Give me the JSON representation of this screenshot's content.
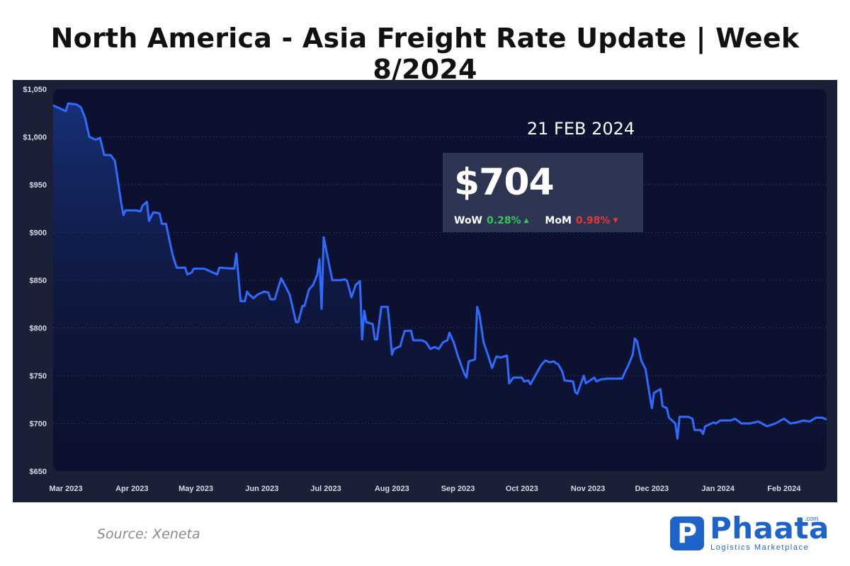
{
  "title": "North America - Asia Freight Rate Update | Week 8/2024",
  "callout": {
    "date": "21 FEB 2024",
    "value": "$704",
    "wow_label": "WoW",
    "wow_value": "0.28%",
    "mom_label": "MoM",
    "mom_value": "0.98%"
  },
  "source": "Source: Xeneta",
  "logo": {
    "name": "Phaata",
    "badge": "P",
    "com": ".com",
    "tagline": "Logistics Marketplace"
  },
  "colors": {
    "line": "#2f6bff",
    "panel": "#1b2036",
    "plot": "#0c1130",
    "up": "#34c759",
    "down": "#e53935",
    "brand": "#1e64c8"
  },
  "chart_data": {
    "type": "line",
    "title": "North America - Asia Freight Rate Update | Week 8/2024",
    "xlabel": "",
    "ylabel": "",
    "ylim": [
      650,
      1050
    ],
    "yticks": [
      650,
      700,
      750,
      800,
      850,
      900,
      950,
      1000,
      1050
    ],
    "ytick_labels": [
      "$650",
      "$700",
      "$750",
      "$800",
      "$850",
      "$900",
      "$950",
      "$1,000",
      "$1,050"
    ],
    "xlim": [
      "2023-02-23",
      "2024-02-21"
    ],
    "xtick_labels": [
      "Mar 2023",
      "Apr 2023",
      "May 2023",
      "Jun 2023",
      "Jul 2023",
      "Aug 2023",
      "Sep 2023",
      "Oct 2023",
      "Nov 2023",
      "Dec 2023",
      "Jan 2024",
      "Feb 2024"
    ],
    "xtick_dates": [
      "2023-03-01",
      "2023-04-01",
      "2023-05-01",
      "2023-06-01",
      "2023-07-01",
      "2023-08-01",
      "2023-09-01",
      "2023-10-01",
      "2023-11-01",
      "2023-12-01",
      "2024-01-01",
      "2024-02-01"
    ],
    "grid": true,
    "series": [
      {
        "values": [
          [
            "2023-02-23",
            1033
          ],
          [
            "2023-02-26",
            1030
          ],
          [
            "2023-03-01",
            1027
          ],
          [
            "2023-03-02",
            1035
          ],
          [
            "2023-03-06",
            1034
          ],
          [
            "2023-03-08",
            1031
          ],
          [
            "2023-03-10",
            1020
          ],
          [
            "2023-03-12",
            1000
          ],
          [
            "2023-03-15",
            997
          ],
          [
            "2023-03-17",
            999
          ],
          [
            "2023-03-19",
            981
          ],
          [
            "2023-03-22",
            981
          ],
          [
            "2023-03-24",
            975
          ],
          [
            "2023-03-27",
            930
          ],
          [
            "2023-03-28",
            918
          ],
          [
            "2023-03-29",
            923
          ],
          [
            "2023-04-03",
            923
          ],
          [
            "2023-04-05",
            922
          ],
          [
            "2023-04-06",
            928
          ],
          [
            "2023-04-08",
            932
          ],
          [
            "2023-04-09",
            912
          ],
          [
            "2023-04-11",
            921
          ],
          [
            "2023-04-14",
            920
          ],
          [
            "2023-04-15",
            909
          ],
          [
            "2023-04-17",
            909
          ],
          [
            "2023-04-20",
            877
          ],
          [
            "2023-04-22",
            863
          ],
          [
            "2023-04-26",
            863
          ],
          [
            "2023-04-27",
            856
          ],
          [
            "2023-04-29",
            858
          ],
          [
            "2023-04-30",
            862
          ],
          [
            "2023-05-05",
            862
          ],
          [
            "2023-05-07",
            860
          ],
          [
            "2023-05-11",
            856
          ],
          [
            "2023-05-12",
            863
          ],
          [
            "2023-05-19",
            862
          ],
          [
            "2023-05-20",
            878
          ],
          [
            "2023-05-22",
            828
          ],
          [
            "2023-05-24",
            828
          ],
          [
            "2023-05-25",
            838
          ],
          [
            "2023-05-26",
            835
          ],
          [
            "2023-05-28",
            831
          ],
          [
            "2023-05-30",
            835
          ],
          [
            "2023-06-02",
            838
          ],
          [
            "2023-06-04",
            837
          ],
          [
            "2023-06-05",
            830
          ],
          [
            "2023-06-07",
            830
          ],
          [
            "2023-06-10",
            852
          ],
          [
            "2023-06-11",
            848
          ],
          [
            "2023-06-14",
            835
          ],
          [
            "2023-06-17",
            806
          ],
          [
            "2023-06-18",
            806
          ],
          [
            "2023-06-20",
            823
          ],
          [
            "2023-06-21",
            823
          ],
          [
            "2023-06-23",
            840
          ],
          [
            "2023-06-25",
            845
          ],
          [
            "2023-06-27",
            856
          ],
          [
            "2023-06-28",
            872
          ],
          [
            "2023-06-29",
            820
          ],
          [
            "2023-06-30",
            895
          ],
          [
            "2023-07-04",
            850
          ],
          [
            "2023-07-08",
            850
          ],
          [
            "2023-07-10",
            851
          ],
          [
            "2023-07-11",
            849
          ],
          [
            "2023-07-13",
            832
          ],
          [
            "2023-07-15",
            845
          ],
          [
            "2023-07-17",
            849
          ],
          [
            "2023-07-18",
            788
          ],
          [
            "2023-07-19",
            818
          ],
          [
            "2023-07-20",
            806
          ],
          [
            "2023-07-23",
            804
          ],
          [
            "2023-07-24",
            788
          ],
          [
            "2023-07-25",
            788
          ],
          [
            "2023-07-27",
            822
          ],
          [
            "2023-07-30",
            822
          ],
          [
            "2023-07-31",
            800
          ],
          [
            "2023-08-01",
            772
          ],
          [
            "2023-08-02",
            778
          ],
          [
            "2023-08-05",
            781
          ],
          [
            "2023-08-06",
            790
          ],
          [
            "2023-08-07",
            797
          ],
          [
            "2023-08-10",
            797
          ],
          [
            "2023-08-11",
            787
          ],
          [
            "2023-08-15",
            787
          ],
          [
            "2023-08-17",
            785
          ],
          [
            "2023-08-19",
            778
          ],
          [
            "2023-08-21",
            780
          ],
          [
            "2023-08-23",
            778
          ],
          [
            "2023-08-25",
            785
          ],
          [
            "2023-08-27",
            787
          ],
          [
            "2023-08-28",
            795
          ],
          [
            "2023-08-30",
            785
          ],
          [
            "2023-09-01",
            770
          ],
          [
            "2023-09-04",
            752
          ],
          [
            "2023-09-05",
            748
          ],
          [
            "2023-09-06",
            765
          ],
          [
            "2023-09-09",
            767
          ],
          [
            "2023-09-10",
            822
          ],
          [
            "2023-09-11",
            815
          ],
          [
            "2023-09-13",
            785
          ],
          [
            "2023-09-15",
            772
          ],
          [
            "2023-09-17",
            758
          ],
          [
            "2023-09-19",
            770
          ],
          [
            "2023-09-21",
            769
          ],
          [
            "2023-09-24",
            771
          ],
          [
            "2023-09-25",
            742
          ],
          [
            "2023-09-27",
            748
          ],
          [
            "2023-10-01",
            748
          ],
          [
            "2023-10-02",
            744
          ],
          [
            "2023-10-04",
            745
          ],
          [
            "2023-10-05",
            741
          ],
          [
            "2023-10-06",
            745
          ],
          [
            "2023-10-08",
            753
          ],
          [
            "2023-10-10",
            761
          ],
          [
            "2023-10-12",
            766
          ],
          [
            "2023-10-14",
            764
          ],
          [
            "2023-10-16",
            765
          ],
          [
            "2023-10-17",
            763
          ],
          [
            "2023-10-18",
            762
          ],
          [
            "2023-10-20",
            754
          ],
          [
            "2023-10-21",
            745
          ],
          [
            "2023-10-25",
            744
          ],
          [
            "2023-10-26",
            733
          ],
          [
            "2023-10-27",
            731
          ],
          [
            "2023-10-30",
            750
          ],
          [
            "2023-10-31",
            742
          ],
          [
            "2023-11-02",
            745
          ],
          [
            "2023-11-04",
            748
          ],
          [
            "2023-11-05",
            744
          ],
          [
            "2023-11-07",
            746
          ],
          [
            "2023-11-10",
            747
          ],
          [
            "2023-11-17",
            747
          ],
          [
            "2023-11-18",
            752
          ],
          [
            "2023-11-20",
            761
          ],
          [
            "2023-11-22",
            772
          ],
          [
            "2023-11-23",
            789
          ],
          [
            "2023-11-24",
            786
          ],
          [
            "2023-11-26",
            766
          ],
          [
            "2023-11-28",
            757
          ],
          [
            "2023-11-30",
            729
          ],
          [
            "2023-12-01",
            716
          ],
          [
            "2023-12-02",
            732
          ],
          [
            "2023-12-05",
            736
          ],
          [
            "2023-12-06",
            718
          ],
          [
            "2023-12-08",
            716
          ],
          [
            "2023-12-09",
            706
          ],
          [
            "2023-12-12",
            700
          ],
          [
            "2023-12-13",
            684
          ],
          [
            "2023-12-14",
            707
          ],
          [
            "2023-12-18",
            707
          ],
          [
            "2023-12-20",
            705
          ],
          [
            "2023-12-21",
            693
          ],
          [
            "2023-12-24",
            693
          ],
          [
            "2023-12-25",
            689
          ],
          [
            "2023-12-26",
            697
          ],
          [
            "2023-12-30",
            701
          ],
          [
            "2023-12-31",
            700
          ],
          [
            "2024-01-02",
            703
          ],
          [
            "2024-01-07",
            703
          ],
          [
            "2024-01-09",
            705
          ],
          [
            "2024-01-12",
            700
          ],
          [
            "2024-01-16",
            700
          ],
          [
            "2024-01-20",
            702
          ],
          [
            "2024-01-24",
            697
          ],
          [
            "2024-01-28",
            700
          ],
          [
            "2024-02-01",
            705
          ],
          [
            "2024-02-04",
            700
          ],
          [
            "2024-02-07",
            701
          ],
          [
            "2024-02-10",
            703
          ],
          [
            "2024-02-13",
            702
          ],
          [
            "2024-02-16",
            706
          ],
          [
            "2024-02-19",
            706
          ],
          [
            "2024-02-21",
            704
          ]
        ]
      }
    ]
  }
}
